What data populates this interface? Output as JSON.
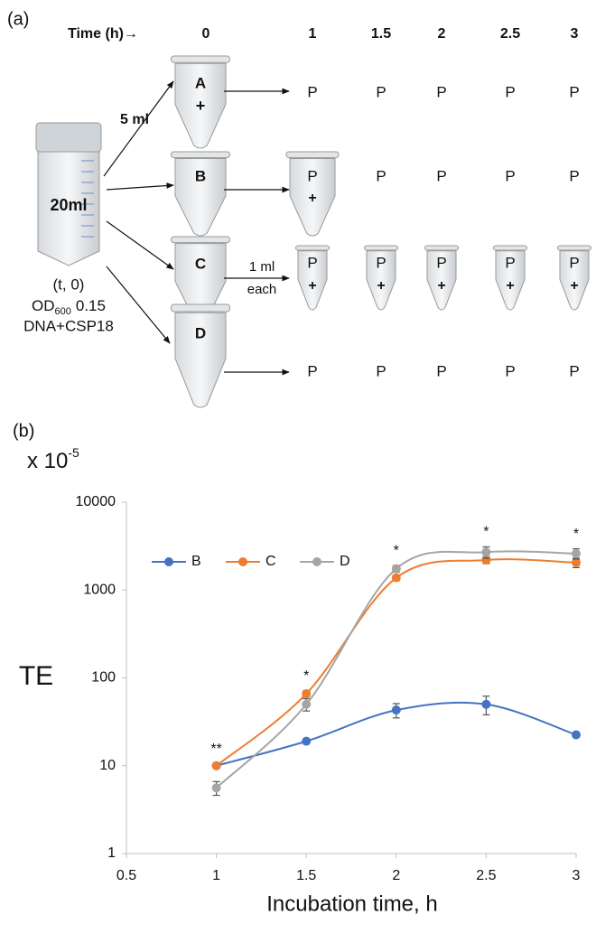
{
  "diagram": {
    "label": "(a)",
    "time_header": "Time (h)→",
    "times": [
      "0",
      "1",
      "1.5",
      "2",
      "2.5",
      "3"
    ],
    "stock": {
      "volume": "20ml",
      "condition": "(t, 0)",
      "od": {
        "text": "OD",
        "sub": "600",
        "value": "0.15"
      },
      "additive": "DNA+CSP18"
    },
    "split_volume": "5 ml",
    "rows": [
      {
        "tube": "A",
        "tube_mark": "+",
        "samples": [
          {
            "text": "P"
          },
          {
            "text": "P"
          },
          {
            "text": "P"
          },
          {
            "text": "P"
          },
          {
            "text": "P"
          }
        ]
      },
      {
        "tube": "B",
        "samples": [
          {
            "text": "P",
            "mark": "+"
          },
          {
            "text": "P"
          },
          {
            "text": "P"
          },
          {
            "text": "P"
          },
          {
            "text": "P"
          }
        ]
      },
      {
        "tube": "C",
        "transfer": [
          "1 ml",
          "each"
        ],
        "samples": [
          {
            "text": "P",
            "mark": "+"
          },
          {
            "text": "P",
            "mark": "+"
          },
          {
            "text": "P",
            "mark": "+"
          },
          {
            "text": "P",
            "mark": "+"
          },
          {
            "text": "P",
            "mark": "+"
          }
        ]
      },
      {
        "tube": "D",
        "samples": [
          {
            "text": "P"
          },
          {
            "text": "P"
          },
          {
            "text": "P"
          },
          {
            "text": "P"
          },
          {
            "text": "P"
          }
        ]
      }
    ]
  },
  "chart_data": {
    "type": "line",
    "panel_label": "(b)",
    "multiplier": {
      "text": "x 10",
      "exponent": "-5"
    },
    "y_label": "TE",
    "x_label": "Incubation time, h",
    "x": [
      1,
      1.5,
      2,
      2.5,
      3
    ],
    "series": [
      {
        "name": "B",
        "color": "#4472c4",
        "values": [
          10,
          19,
          43,
          50,
          22.5
        ],
        "errors": [
          0.5,
          1,
          8,
          12,
          1
        ]
      },
      {
        "name": "C",
        "color": "#ed7d31",
        "values": [
          10,
          66,
          1380,
          2200,
          2050
        ],
        "errors": [
          0.5,
          5,
          100,
          200,
          250
        ]
      },
      {
        "name": "D",
        "color": "#a5a5a5",
        "values": [
          5.6,
          50,
          1750,
          2700,
          2600
        ],
        "errors": [
          1,
          8,
          150,
          400,
          350
        ]
      }
    ],
    "annotations": [
      {
        "x": 1,
        "text": "**"
      },
      {
        "x": 1.5,
        "text": "*"
      },
      {
        "x": 2,
        "text": "*"
      },
      {
        "x": 2.5,
        "text": "*"
      },
      {
        "x": 3,
        "text": "*"
      }
    ],
    "xlim": [
      0.5,
      3
    ],
    "xticks": [
      0.5,
      1,
      1.5,
      2,
      2.5,
      3
    ],
    "ylim": [
      1,
      10000
    ],
    "yticks": [
      1,
      10,
      100,
      1000,
      10000
    ],
    "log_y": true,
    "grid": false,
    "smooth": true,
    "legend": "upper left"
  }
}
